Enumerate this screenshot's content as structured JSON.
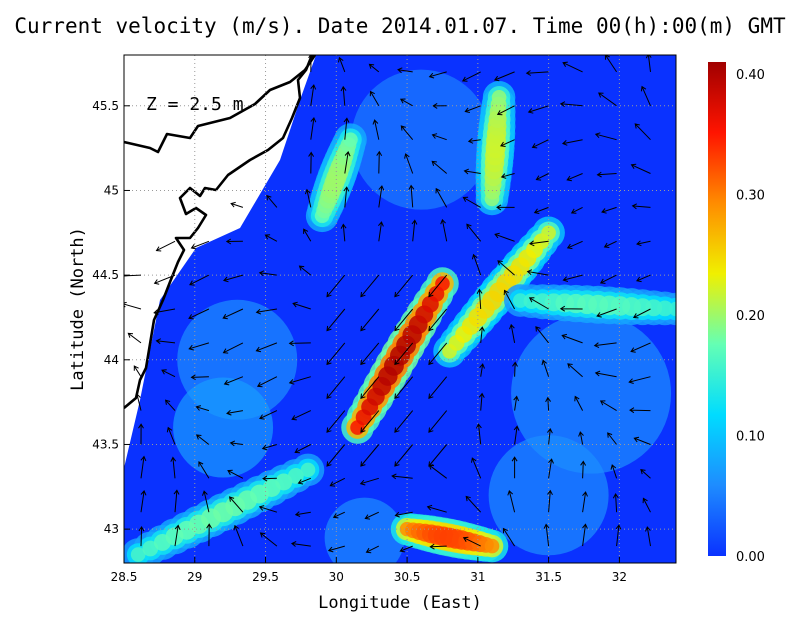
{
  "title": "Current velocity (m/s). Date 2014.01.07. Time 00(h):00(m) GMT",
  "depth_label": "Z = 2.5 m",
  "chart_data": {
    "type": "heatmap",
    "title": "Current velocity (m/s). Date 2014.01.07. Time 00(h):00(m) GMT",
    "xlabel": "Longitude (East)",
    "ylabel": "Latitude (North)",
    "xlim": [
      28.5,
      32.4
    ],
    "ylim": [
      42.8,
      45.8
    ],
    "x_ticks": [
      {
        "value": 28.5,
        "label": "28.5"
      },
      {
        "value": 29,
        "label": "29"
      },
      {
        "value": 29.5,
        "label": "29.5"
      },
      {
        "value": 30,
        "label": "30"
      },
      {
        "value": 30.5,
        "label": "30.5"
      },
      {
        "value": 31,
        "label": "31"
      },
      {
        "value": 31.5,
        "label": "31.5"
      },
      {
        "value": 32,
        "label": "32"
      }
    ],
    "y_ticks": [
      {
        "value": 43,
        "label": "43"
      },
      {
        "value": 43.5,
        "label": "43.5"
      },
      {
        "value": 44,
        "label": "44"
      },
      {
        "value": 44.5,
        "label": "44.5"
      },
      {
        "value": 45,
        "label": "45"
      },
      {
        "value": 45.5,
        "label": "45.5"
      }
    ],
    "grid": true,
    "colorbar": {
      "min": 0.0,
      "max": 0.41,
      "ticks": [
        {
          "value": 0.0,
          "label": "0.00"
        },
        {
          "value": 0.1,
          "label": "0.10"
        },
        {
          "value": 0.2,
          "label": "0.20"
        },
        {
          "value": 0.3,
          "label": "0.30"
        },
        {
          "value": 0.4,
          "label": "0.40"
        }
      ],
      "colors": [
        "#0a32ff",
        "#1e8cff",
        "#00dcff",
        "#64ffb4",
        "#f0f000",
        "#ff8c00",
        "#ff1400",
        "#a00000"
      ]
    },
    "high_speed_features": [
      {
        "name": "main jet core",
        "from": [
          30.15,
          43.6
        ],
        "to": [
          30.75,
          44.45
        ],
        "speed": 0.4
      },
      {
        "name": "eastern branch",
        "from": [
          30.8,
          44.05
        ],
        "to": [
          31.5,
          44.75
        ],
        "speed": 0.25
      },
      {
        "name": "southern eddy",
        "from": [
          30.5,
          43.0
        ],
        "to": [
          31.1,
          42.9
        ],
        "speed": 0.33
      },
      {
        "name": "northern filament",
        "from": [
          31.1,
          44.95
        ],
        "to": [
          31.15,
          45.55
        ],
        "speed": 0.22
      },
      {
        "name": "coastal branch",
        "from": [
          29.9,
          44.85
        ],
        "to": [
          30.1,
          45.3
        ],
        "speed": 0.2
      },
      {
        "name": "southwest band",
        "from": [
          28.6,
          42.85
        ],
        "to": [
          29.8,
          43.35
        ],
        "speed": 0.18
      },
      {
        "name": "east band",
        "from": [
          31.3,
          44.35
        ],
        "to": [
          32.4,
          44.3
        ],
        "speed": 0.17
      }
    ]
  },
  "colors": {
    "land": "#ffffff",
    "coastline": "#000000",
    "grid": "#9a9a9a",
    "arrows": "#000000"
  }
}
